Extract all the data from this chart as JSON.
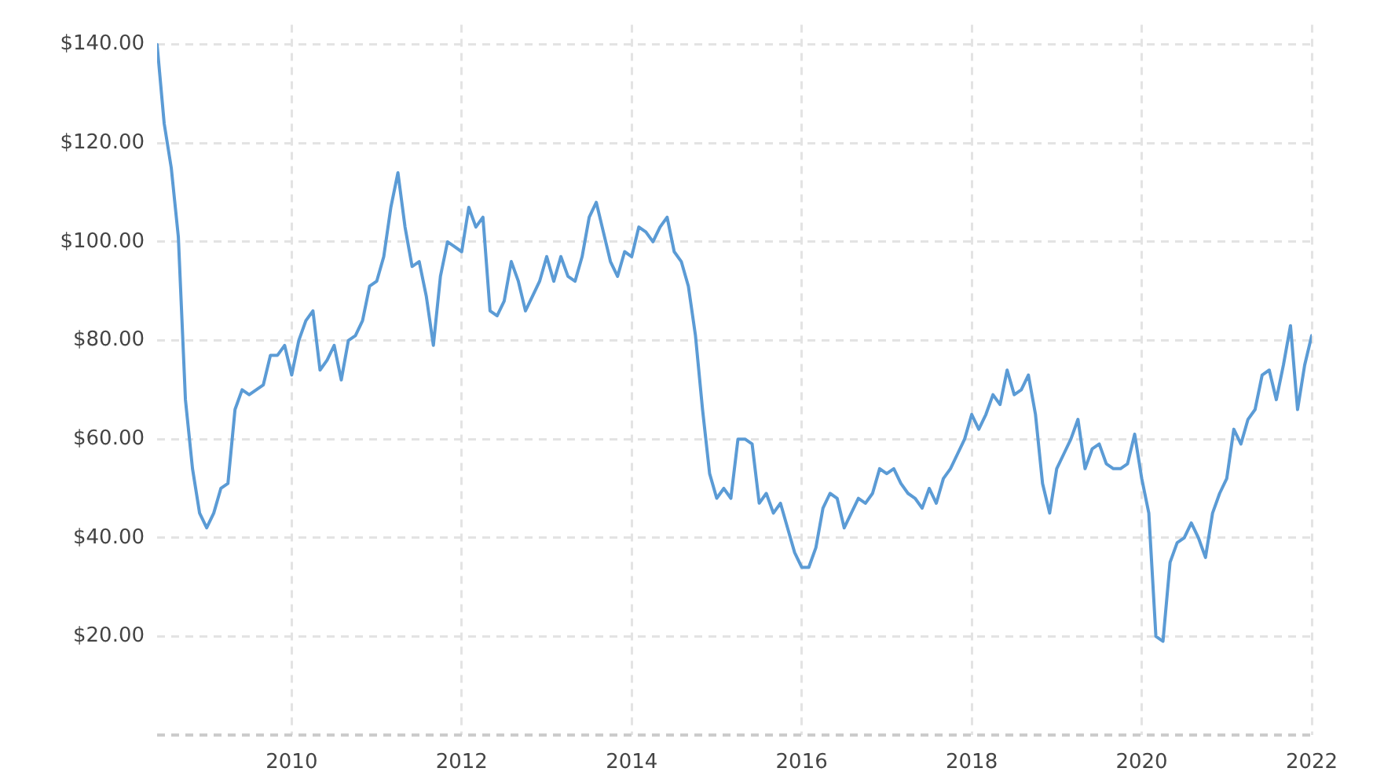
{
  "chart_data": {
    "type": "line",
    "x": [
      "2008-06",
      "2008-07",
      "2008-08",
      "2008-09",
      "2008-10",
      "2008-11",
      "2008-12",
      "2009-01",
      "2009-02",
      "2009-03",
      "2009-04",
      "2009-05",
      "2009-06",
      "2009-07",
      "2009-08",
      "2009-09",
      "2009-10",
      "2009-11",
      "2009-12",
      "2010-01",
      "2010-02",
      "2010-03",
      "2010-04",
      "2010-05",
      "2010-06",
      "2010-07",
      "2010-08",
      "2010-09",
      "2010-10",
      "2010-11",
      "2010-12",
      "2011-01",
      "2011-02",
      "2011-03",
      "2011-04",
      "2011-05",
      "2011-06",
      "2011-07",
      "2011-08",
      "2011-09",
      "2011-10",
      "2011-11",
      "2011-12",
      "2012-01",
      "2012-02",
      "2012-03",
      "2012-04",
      "2012-05",
      "2012-06",
      "2012-07",
      "2012-08",
      "2012-09",
      "2012-10",
      "2012-11",
      "2012-12",
      "2013-01",
      "2013-02",
      "2013-03",
      "2013-04",
      "2013-05",
      "2013-06",
      "2013-07",
      "2013-08",
      "2013-09",
      "2013-10",
      "2013-11",
      "2013-12",
      "2014-01",
      "2014-02",
      "2014-03",
      "2014-04",
      "2014-05",
      "2014-06",
      "2014-07",
      "2014-08",
      "2014-09",
      "2014-10",
      "2014-11",
      "2014-12",
      "2015-01",
      "2015-02",
      "2015-03",
      "2015-04",
      "2015-05",
      "2015-06",
      "2015-07",
      "2015-08",
      "2015-09",
      "2015-10",
      "2015-11",
      "2015-12",
      "2016-01",
      "2016-02",
      "2016-03",
      "2016-04",
      "2016-05",
      "2016-06",
      "2016-07",
      "2016-08",
      "2016-09",
      "2016-10",
      "2016-11",
      "2016-12",
      "2017-01",
      "2017-02",
      "2017-03",
      "2017-04",
      "2017-05",
      "2017-06",
      "2017-07",
      "2017-08",
      "2017-09",
      "2017-10",
      "2017-11",
      "2017-12",
      "2018-01",
      "2018-02",
      "2018-03",
      "2018-04",
      "2018-05",
      "2018-06",
      "2018-07",
      "2018-08",
      "2018-09",
      "2018-10",
      "2018-11",
      "2018-12",
      "2019-01",
      "2019-02",
      "2019-03",
      "2019-04",
      "2019-05",
      "2019-06",
      "2019-07",
      "2019-08",
      "2019-09",
      "2019-10",
      "2019-11",
      "2019-12",
      "2020-01",
      "2020-02",
      "2020-03",
      "2020-04",
      "2020-05",
      "2020-06",
      "2020-07",
      "2020-08",
      "2020-09",
      "2020-10",
      "2020-11",
      "2020-12",
      "2021-01",
      "2021-02",
      "2021-03",
      "2021-04",
      "2021-05",
      "2021-06",
      "2021-07",
      "2021-08",
      "2021-09",
      "2021-10",
      "2021-11",
      "2021-12",
      "2022-01"
    ],
    "values": [
      140,
      124,
      115,
      101,
      68,
      54,
      45,
      42,
      45,
      50,
      51,
      66,
      70,
      69,
      70,
      71,
      77,
      77,
      79,
      73,
      80,
      84,
      86,
      74,
      76,
      79,
      72,
      80,
      81,
      84,
      91,
      92,
      97,
      107,
      114,
      103,
      95,
      96,
      89,
      79,
      93,
      100,
      99,
      98,
      107,
      103,
      105,
      86,
      85,
      88,
      96,
      92,
      86,
      89,
      92,
      97,
      92,
      97,
      93,
      92,
      97,
      105,
      108,
      102,
      96,
      93,
      98,
      97,
      103,
      102,
      100,
      103,
      105,
      98,
      96,
      91,
      81,
      66,
      53,
      48,
      50,
      48,
      60,
      60,
      59,
      47,
      49,
      45,
      47,
      42,
      37,
      34,
      34,
      38,
      46,
      49,
      48,
      42,
      45,
      48,
      47,
      49,
      54,
      53,
      54,
      51,
      49,
      48,
      46,
      50,
      47,
      52,
      54,
      57,
      60,
      65,
      62,
      65,
      69,
      67,
      74,
      69,
      70,
      73,
      65,
      51,
      45,
      54,
      57,
      60,
      64,
      54,
      58,
      59,
      55,
      54,
      54,
      55,
      61,
      52,
      45,
      20,
      19,
      35,
      39,
      40,
      43,
      40,
      36,
      45,
      49,
      52,
      62,
      59,
      64,
      66,
      73,
      74,
      68,
      75,
      83,
      66,
      75,
      81
    ],
    "color": "#5b9bd5",
    "xlim": [
      "2008-06",
      "2022-01"
    ],
    "xticks": [
      "2010",
      "2012",
      "2014",
      "2016",
      "2018",
      "2020",
      "2022"
    ],
    "ylim": [
      0,
      144
    ],
    "yticks": [
      {
        "value": 20,
        "label": "$20.00"
      },
      {
        "value": 40,
        "label": "$40.00"
      },
      {
        "value": 60,
        "label": "$60.00"
      },
      {
        "value": 80,
        "label": "$80.00"
      },
      {
        "value": 100,
        "label": "$100.00"
      },
      {
        "value": 120,
        "label": "$120.00"
      },
      {
        "value": 140,
        "label": "$140.00"
      }
    ],
    "grid": true
  }
}
